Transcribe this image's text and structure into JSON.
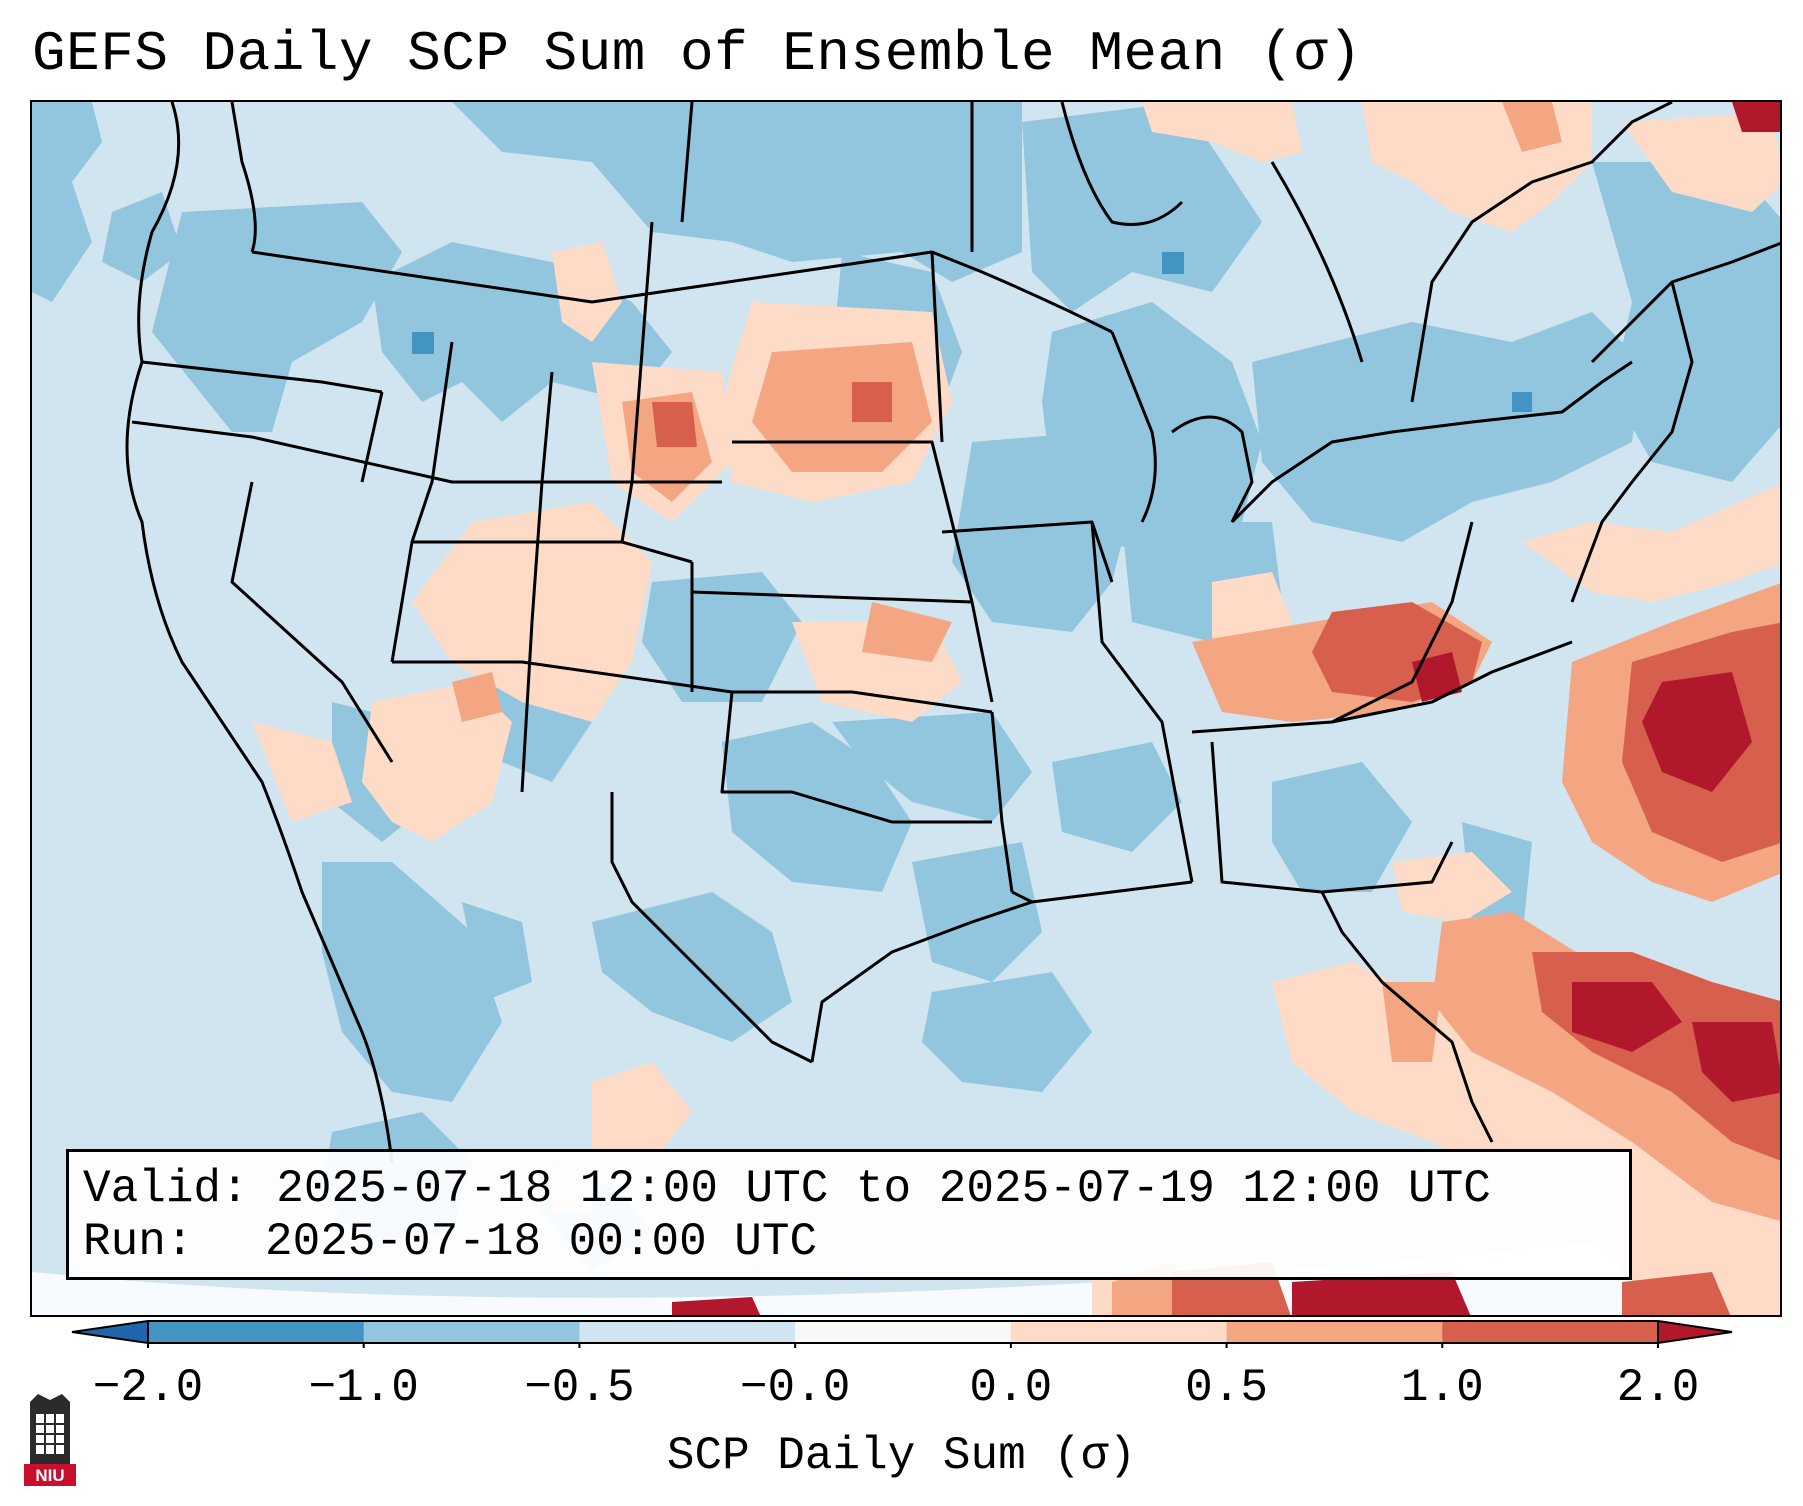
{
  "title": "GEFS Daily SCP Sum of Ensemble Mean (σ)",
  "info_box": {
    "valid_label": "Valid:",
    "valid_value": "2025-07-18 12:00 UTC to 2025-07-19 12:00 UTC",
    "run_label": "Run:",
    "run_value": "2025-07-18 00:00 UTC"
  },
  "colorbar": {
    "label": "SCP Daily Sum (σ)",
    "ticks": [
      "−2.0",
      "−1.0",
      "−0.5",
      "−0.0",
      "0.0",
      "0.5",
      "1.0",
      "2.0"
    ],
    "bins": [
      {
        "from": "-2.0",
        "to": "-1.0",
        "color": "#4393c3"
      },
      {
        "from": "-1.0",
        "to": "-0.5",
        "color": "#92c5de"
      },
      {
        "from": "-0.5",
        "to": "-0.0",
        "color": "#d1e5f0"
      },
      {
        "from": "-0.0",
        "to": "0.0",
        "color": "#f7f7f7"
      },
      {
        "from": "0.0",
        "to": "0.5",
        "color": "#fddbc7"
      },
      {
        "from": "0.5",
        "to": "1.0",
        "color": "#f4a582"
      },
      {
        "from": "1.0",
        "to": "2.0",
        "color": "#d6604d"
      }
    ],
    "under_color": "#2166ac",
    "over_color": "#b2182b"
  },
  "colors": {
    "neg_strong": "#4393c3",
    "neg_medium": "#92c5de",
    "neg_weak": "#d1e5f0",
    "pos_weak": "#fddbc7",
    "pos_medium": "#f4a582",
    "pos_high": "#d6604d",
    "pos_max": "#b2182b",
    "state_lines": "#000000"
  },
  "logo": {
    "text": "NIU"
  }
}
